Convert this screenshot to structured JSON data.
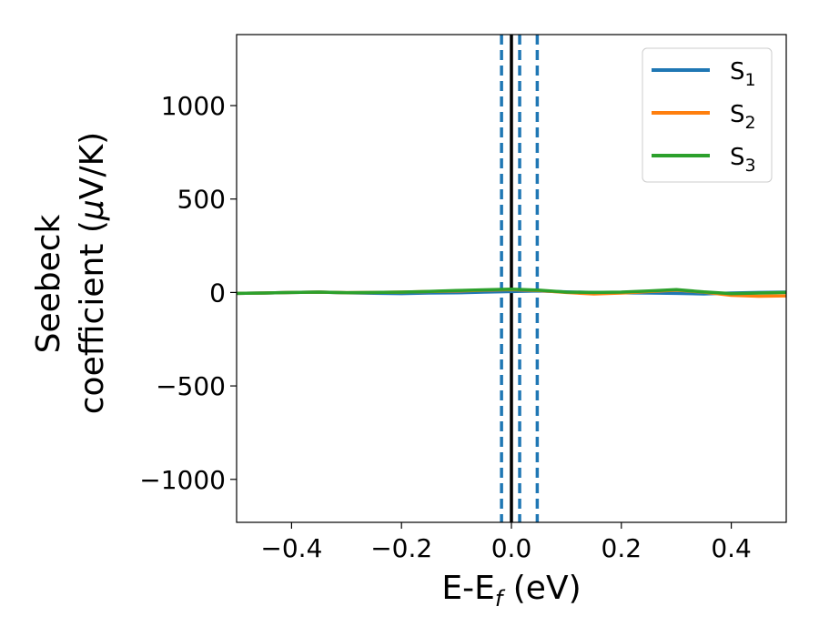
{
  "chart_data": {
    "type": "line",
    "xlabel": "E-E",
    "xlabel_sub": "f",
    "xlabel_unit": " (eV)",
    "ylabel_line1": "Seebeck",
    "ylabel_line2": "coefficient  (",
    "ylabel_mu": "μ",
    "ylabel_unit": "V/K)",
    "xlim": [
      -0.5,
      0.5
    ],
    "ylim": [
      -1230,
      1380
    ],
    "x_ticks": [
      -0.4,
      -0.2,
      0.0,
      0.2,
      0.4
    ],
    "x_tick_labels": [
      "−0.4",
      "−0.2",
      "0.0",
      "0.2",
      "0.4"
    ],
    "y_ticks": [
      -1000,
      -500,
      0,
      500,
      1000
    ],
    "y_tick_labels": [
      "−1000",
      "−500",
      "0",
      "500",
      "1000"
    ],
    "grid": false,
    "legend_position": "top-right",
    "vertical_lines": [
      {
        "x": -0.018,
        "style": "dashed",
        "color": "#1f77b4"
      },
      {
        "x": 0.0,
        "style": "solid",
        "color": "#000000"
      },
      {
        "x": 0.015,
        "style": "dashed",
        "color": "#1f77b4"
      },
      {
        "x": 0.047,
        "style": "dashed",
        "color": "#1f77b4"
      }
    ],
    "x": [
      -0.5,
      -0.45,
      -0.4,
      -0.35,
      -0.3,
      -0.25,
      -0.2,
      -0.15,
      -0.1,
      -0.05,
      0.0,
      0.05,
      0.1,
      0.15,
      0.2,
      0.25,
      0.3,
      0.35,
      0.4,
      0.45,
      0.5
    ],
    "series": [
      {
        "name": "S",
        "sub": "1",
        "color": "#1f77b4",
        "values": [
          -5,
          -3,
          0,
          2,
          -2,
          -4,
          -6,
          -3,
          -2,
          2,
          5,
          8,
          3,
          0,
          -2,
          -3,
          -5,
          -8,
          -3,
          0,
          2
        ]
      },
      {
        "name": "S",
        "sub": "2",
        "color": "#ff7f0e",
        "values": [
          -5,
          -3,
          0,
          2,
          -1,
          0,
          2,
          5,
          8,
          12,
          15,
          10,
          0,
          -8,
          -3,
          5,
          12,
          2,
          -15,
          -20,
          -18
        ]
      },
      {
        "name": "S",
        "sub": "3",
        "color": "#2ca02c",
        "values": [
          -5,
          -3,
          0,
          2,
          -1,
          0,
          2,
          6,
          10,
          14,
          18,
          12,
          2,
          0,
          2,
          8,
          15,
          3,
          -6,
          -3,
          0
        ]
      }
    ]
  }
}
